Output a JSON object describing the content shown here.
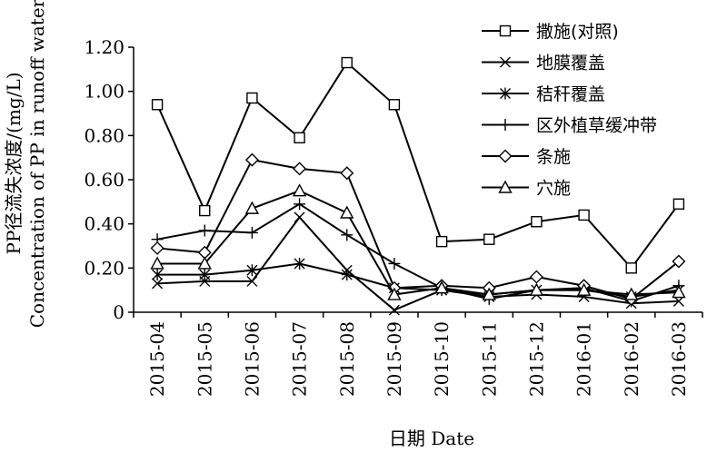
{
  "chart_data": {
    "type": "line",
    "title": "",
    "ylabel_cn": "PP径流失浓度/(mg/L)",
    "ylabel_en": "Concentration of PP in runoff water",
    "xlabel": "日期 Date",
    "ylim": [
      0,
      1.2
    ],
    "yticks": [
      "0",
      "0.20",
      "0.40",
      "0.60",
      "0.80",
      "1.00",
      "1.20"
    ],
    "categories": [
      "2015-04",
      "2015-05",
      "2015-06",
      "2015-07",
      "2015-08",
      "2015-09",
      "2015-10",
      "2015-11",
      "2015-12",
      "2016-01",
      "2016-02",
      "2016-03"
    ],
    "grid": false,
    "legend_position": "top-right",
    "series": [
      {
        "name": "撒施(对照)",
        "marker": "square",
        "values": [
          0.94,
          0.46,
          0.97,
          0.79,
          1.13,
          0.94,
          0.32,
          0.33,
          0.41,
          0.44,
          0.2,
          0.49
        ]
      },
      {
        "name": "地膜覆盖",
        "marker": "x",
        "values": [
          0.13,
          0.14,
          0.14,
          0.43,
          0.19,
          0.01,
          0.1,
          0.07,
          0.08,
          0.07,
          0.04,
          0.05
        ]
      },
      {
        "name": "秸秆覆盖",
        "marker": "asterisk",
        "values": [
          0.17,
          0.17,
          0.19,
          0.22,
          0.17,
          0.11,
          0.1,
          0.08,
          0.1,
          0.1,
          0.07,
          0.1
        ]
      },
      {
        "name": "区外植草缓冲带",
        "marker": "plus",
        "values": [
          0.33,
          0.37,
          0.36,
          0.49,
          0.35,
          0.22,
          0.11,
          0.06,
          0.1,
          0.11,
          0.05,
          0.12
        ]
      },
      {
        "name": "条施",
        "marker": "diamond",
        "values": [
          0.29,
          0.27,
          0.69,
          0.65,
          0.63,
          0.11,
          0.12,
          0.11,
          0.16,
          0.12,
          0.06,
          0.23
        ]
      },
      {
        "name": "穴施",
        "marker": "triangle",
        "values": [
          0.22,
          0.22,
          0.47,
          0.55,
          0.45,
          0.08,
          0.11,
          0.08,
          0.1,
          0.1,
          0.08,
          0.09
        ]
      }
    ]
  }
}
